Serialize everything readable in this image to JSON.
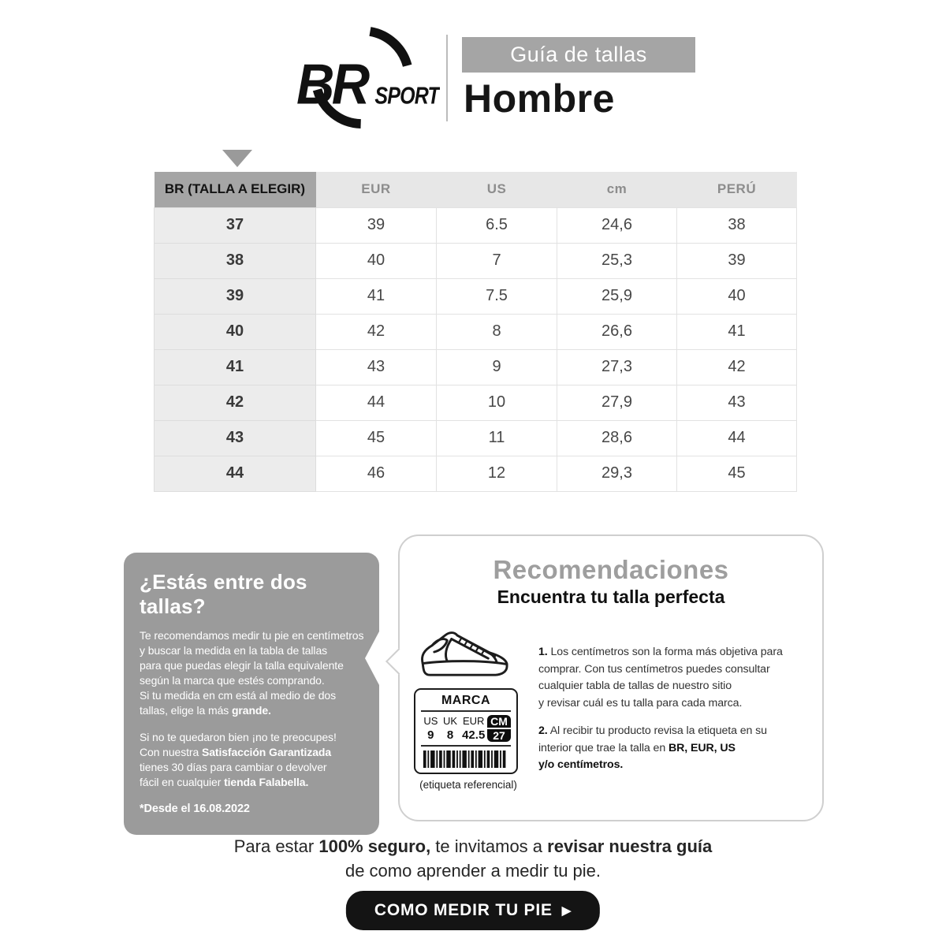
{
  "colors": {
    "banner_gray": "#a5a5a5",
    "table_header_bg": "#e7e7e7",
    "table_header_dark_bg": "#a5a5a5",
    "row_label_bg": "#ececec",
    "bubble_bg": "#9b9b9b",
    "title_gray": "#9e9e9e",
    "button_black": "#141414"
  },
  "icons": {
    "logo": "brsport-swoosh-circle",
    "table_pointer": "triangle-down",
    "sneaker": "sneaker-outline",
    "barcode": "barcode-stripes",
    "button_arrow": "▶"
  },
  "header": {
    "logo_primary": "BR",
    "logo_secondary": "SPORT",
    "banner_label": "Guía de tallas",
    "title": "Hombre"
  },
  "table": {
    "headers": [
      "BR (TALLA A ELEGIR)",
      "EUR",
      "US",
      "cm",
      "PERÚ"
    ],
    "rows": [
      [
        "37",
        "39",
        "6.5",
        "24,6",
        "38"
      ],
      [
        "38",
        "40",
        "7",
        "25,3",
        "39"
      ],
      [
        "39",
        "41",
        "7.5",
        "25,9",
        "40"
      ],
      [
        "40",
        "42",
        "8",
        "26,6",
        "41"
      ],
      [
        "41",
        "43",
        "9",
        "27,3",
        "42"
      ],
      [
        "42",
        "44",
        "10",
        "27,9",
        "43"
      ],
      [
        "43",
        "45",
        "11",
        "28,6",
        "44"
      ],
      [
        "44",
        "46",
        "12",
        "29,3",
        "45"
      ]
    ]
  },
  "bubble": {
    "title": "¿Estás entre dos tallas?",
    "p1a": "Te recomendamos medir tu pie en centímetros\ny buscar la medida en la tabla de tallas\npara que puedas elegir la talla equivalente\nsegún la marca que estés comprando.\nSi tu medida en cm está al medio de dos\ntallas, elige la más ",
    "p1b": "grande.",
    "p2a": "Si no te quedaron bien ¡no te preocupes!\nCon nuestra ",
    "p2b": "Satisfacción Garantizada",
    "p2c": "\ntienes 30 días para cambiar o devolver\nfácil en cualquier ",
    "p2d": "tienda Falabella.",
    "footnote": "*Desde el 16.08.2022"
  },
  "reco": {
    "title": "Recomendaciones",
    "subtitle": "Encuentra tu talla perfecta",
    "item1_num": "1.",
    "item1_text": " Los centímetros son la forma más objetiva para\ncomprar. Con tus centímetros puedes consultar\ncualquier tabla de tallas de nuestro sitio\ny revisar cuál es tu talla para cada marca.",
    "item2_num": "2.",
    "item2a": " Al recibir tu producto revisa la etiqueta en su\ninterior que trae la talla en ",
    "item2b": "BR, EUR, US\ny/o centímetros.",
    "label": {
      "brand": "MARCA",
      "c1": "US",
      "c2": "UK",
      "c3": "EUR",
      "cm": "CM",
      "v1": "9",
      "v2": "8",
      "v3": "42.5",
      "cm_value": "27",
      "caption": "(etiqueta referencial)"
    }
  },
  "footer": {
    "line1a": "Para estar ",
    "line1b": "100% seguro,",
    "line1c": " te invitamos a ",
    "line1d": "revisar nuestra guía",
    "line2": "\nde como aprender a medir tu pie.",
    "button_label": "COMO MEDIR TU PIE",
    "button_arrow": "▶"
  }
}
